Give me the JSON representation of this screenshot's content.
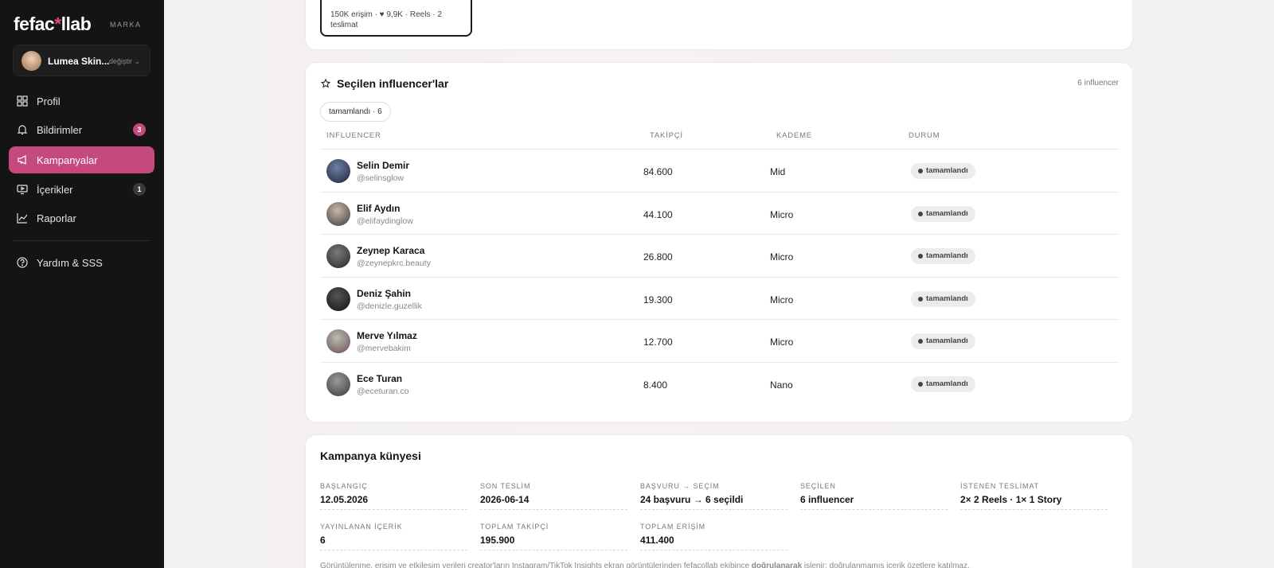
{
  "sidebar": {
    "brand": {
      "prefix": "fefac",
      "mark": "*",
      "suffix": "llab"
    },
    "brand_tag": "MARKA",
    "account": {
      "name": "Lumea Skin...",
      "action": "değiştir ⌄"
    },
    "nav": [
      {
        "label": "Profil"
      },
      {
        "label": "Bildirimler",
        "badge": 3
      },
      {
        "label": "Kampanyalar",
        "active": true
      },
      {
        "label": "İçerikler",
        "badge": 1
      },
      {
        "label": "Raporlar"
      }
    ],
    "help": "Yardım & SSS"
  },
  "top_card": {
    "stats": "150K erişim · ♥ 9,9K · Reels · 2 teslimat"
  },
  "selected": {
    "title": "Seçilen influencer'lar",
    "count": "6 influencer",
    "filter": "tamamlandı · 6",
    "columns": [
      "INFLUENCER",
      "TAKİPÇİ",
      "KADEME",
      "DURUM"
    ],
    "rows": [
      {
        "name": "Selin Demir",
        "handle": "@selinsglow",
        "followers": "84.600",
        "tier": "Mid",
        "status": "tamamlandı"
      },
      {
        "name": "Elif Aydın",
        "handle": "@elifaydinglow",
        "followers": "44.100",
        "tier": "Micro",
        "status": "tamamlandı"
      },
      {
        "name": "Zeynep Karaca",
        "handle": "@zeynepkrc.beauty",
        "followers": "26.800",
        "tier": "Micro",
        "status": "tamamlandı"
      },
      {
        "name": "Deniz Şahin",
        "handle": "@denizle.guzellik",
        "followers": "19.300",
        "tier": "Micro",
        "status": "tamamlandı"
      },
      {
        "name": "Merve Yılmaz",
        "handle": "@mervebakim",
        "followers": "12.700",
        "tier": "Micro",
        "status": "tamamlandı"
      },
      {
        "name": "Ece Turan",
        "handle": "@eceturan.co",
        "followers": "8.400",
        "tier": "Nano",
        "status": "tamamlandı"
      }
    ]
  },
  "campaign": {
    "title": "Kampanya künyesi",
    "fields": [
      {
        "label": "BAŞLANGIÇ",
        "value": "12.05.2026"
      },
      {
        "label": "SON TESLİM",
        "value": "2026-06-14"
      },
      {
        "label": "BAŞVURU → SEÇİM",
        "value": "24 başvuru → 6 seçildi"
      },
      {
        "label": "SEÇİLEN",
        "value": "6 influencer"
      },
      {
        "label": "İSTENEN TESLİMAT",
        "value": "2× 2 Reels · 1× 1 Story"
      },
      {
        "label": "YAYINLANAN İÇERİK",
        "value": "6"
      },
      {
        "label": "TOPLAM TAKİPÇİ",
        "value": "195.900"
      },
      {
        "label": "TOPLAM ERİŞİM",
        "value": "411.400"
      }
    ],
    "note": [
      "Görüntülenme, erişim ve etkileşim verileri creator'ların Instagram/TikTok Insights ekran görüntülerinden fefacollab ekibince ",
      "doğrulanarak",
      " işlenir; doğrulanmamış içerik özetlere katılmaz."
    ]
  }
}
